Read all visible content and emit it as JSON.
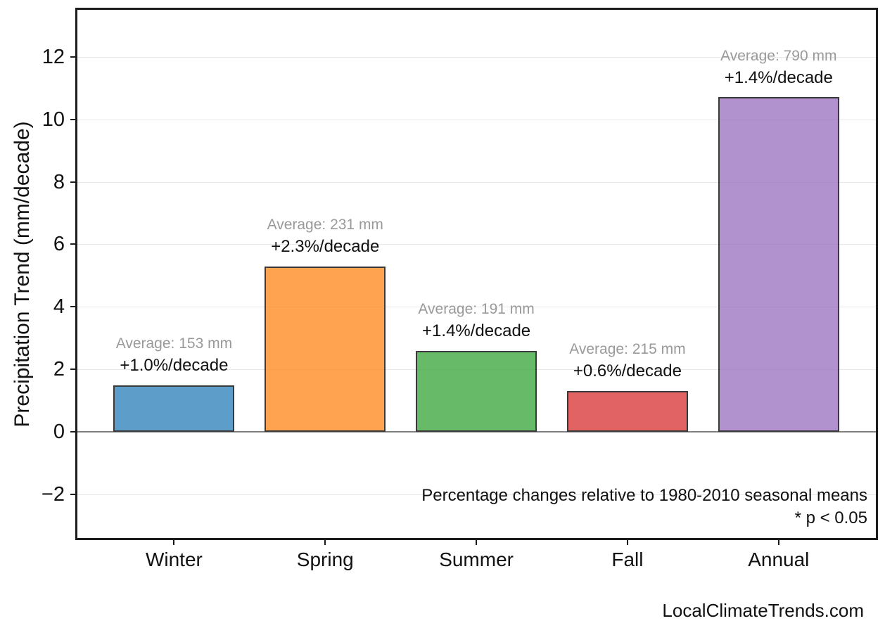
{
  "figure": {
    "background": "#ffffff",
    "watermark": "LocalClimateTrends.com"
  },
  "chart_data": {
    "type": "bar",
    "title": "",
    "xlabel": "",
    "ylabel": "Precipitation Trend (mm/decade)",
    "categories": [
      "Winter",
      "Spring",
      "Summer",
      "Fall",
      "Annual"
    ],
    "values": [
      1.5,
      5.3,
      2.6,
      1.3,
      10.7
    ],
    "bar_fill_colors": [
      "rgba(31,119,180,0.72)",
      "rgba(255,127,14,0.72)",
      "rgba(44,160,44,0.72)",
      "rgba(214,39,40,0.72)",
      "rgba(148,103,189,0.72)"
    ],
    "bar_blended_hex": [
      "#5E9FCA",
      "#FFA558",
      "#6BBC6B",
      "#E26869",
      "#B294CF"
    ],
    "bar_edge_color": "#3a3a3a",
    "bar_labels": [
      {
        "average": "Average: 153 mm",
        "trend": "+1.0%/decade"
      },
      {
        "average": "Average: 231 mm",
        "trend": "+2.3%/decade"
      },
      {
        "average": "Average: 191 mm",
        "trend": "+1.4%/decade"
      },
      {
        "average": "Average: 215 mm",
        "trend": "+0.6%/decade"
      },
      {
        "average": "Average: 790 mm",
        "trend": "+1.4%/decade"
      }
    ],
    "yticks": [
      {
        "value": -2,
        "label": "−2"
      },
      {
        "value": 0,
        "label": "0"
      },
      {
        "value": 2,
        "label": "2"
      },
      {
        "value": 4,
        "label": "4"
      },
      {
        "value": 6,
        "label": "6"
      },
      {
        "value": 8,
        "label": "8"
      },
      {
        "value": 10,
        "label": "10"
      },
      {
        "value": 12,
        "label": "12"
      }
    ],
    "ylim": [
      -3.39,
      13.5
    ],
    "grid": "horizontal",
    "grid_color": "#e9e9e9",
    "zero_line_color": "#808080",
    "annotation_avg_color": "#999999",
    "legend": "none",
    "notes": {
      "line1": "Percentage changes relative to 1980-2010 seasonal means",
      "line2": "* p < 0.05"
    }
  }
}
